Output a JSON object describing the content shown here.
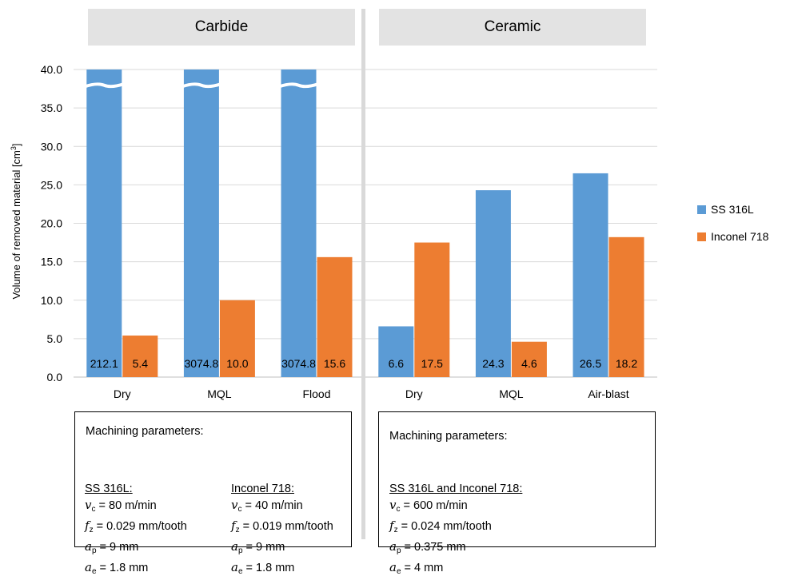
{
  "chart_data": {
    "type": "bar",
    "ylabel": "Volume of removed material [cm",
    "ylabel_sup": "3",
    "ylabel_end": "]",
    "ylim": [
      0,
      40
    ],
    "yticks": [
      "0.0",
      "5.0",
      "10.0",
      "15.0",
      "20.0",
      "25.0",
      "30.0",
      "35.0",
      "40.0"
    ],
    "grid": true,
    "legend_position": "right",
    "series": [
      {
        "name": "SS 316L",
        "color": "#5b9bd5"
      },
      {
        "name": "Inconel 718",
        "color": "#ed7d31"
      }
    ],
    "panels": [
      {
        "title": "Carbide",
        "groups": [
          {
            "label": "Dry",
            "values": [
              212.1,
              5.4
            ],
            "labels": [
              "212.1",
              "5.4"
            ],
            "broken": [
              true,
              false
            ]
          },
          {
            "label": "MQL",
            "values": [
              3074.8,
              10.0
            ],
            "labels": [
              "3074.8",
              "10.0"
            ],
            "broken": [
              true,
              false
            ]
          },
          {
            "label": "Flood",
            "values": [
              3074.8,
              15.6
            ],
            "labels": [
              "3074.8",
              "15.6"
            ],
            "broken": [
              true,
              false
            ]
          }
        ]
      },
      {
        "title": "Ceramic",
        "groups": [
          {
            "label": "Dry",
            "values": [
              6.6,
              17.5
            ],
            "labels": [
              "6.6",
              "17.5"
            ],
            "broken": [
              false,
              false
            ]
          },
          {
            "label": "MQL",
            "values": [
              24.3,
              4.6
            ],
            "labels": [
              "24.3",
              "4.6"
            ],
            "broken": [
              false,
              false
            ]
          },
          {
            "label": "Air-blast",
            "values": [
              26.5,
              18.2
            ],
            "labels": [
              "26.5",
              "18.2"
            ],
            "broken": [
              false,
              false
            ]
          }
        ]
      }
    ]
  },
  "params": {
    "carbide": {
      "title": "Machining parameters:",
      "ss": {
        "heading": "SS 316L:",
        "vc": "80 m/min",
        "fz": "0.029 mm/tooth",
        "ap": "9 mm",
        "ae": "1.8 mm"
      },
      "inconel": {
        "heading": "Inconel 718:",
        "vc": "40 m/min",
        "fz": "0.019 mm/tooth",
        "ap": "9 mm",
        "ae": "1.8 mm"
      }
    },
    "ceramic": {
      "title": "Machining parameters:",
      "both": {
        "heading": "SS 316L and Inconel 718:",
        "vc": "600 m/min",
        "fz": "0.024 mm/tooth",
        "ap": "0.375 mm",
        "ae": "4 mm"
      }
    }
  }
}
